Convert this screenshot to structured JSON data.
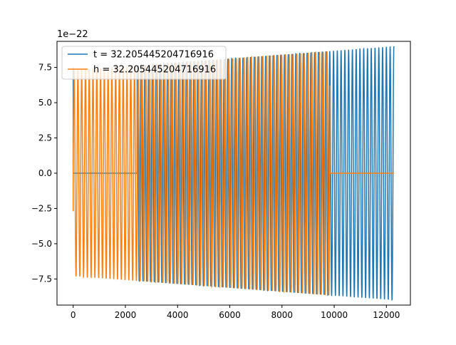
{
  "chart_data": {
    "type": "line",
    "title": "",
    "xlabel": "",
    "ylabel": "",
    "y_offset_label": "1e−22",
    "y_scale": 1e-22,
    "xlim": [
      -620,
      12920
    ],
    "ylim": [
      -9.35,
      9.35
    ],
    "x_ticks": [
      0,
      2000,
      4000,
      6000,
      8000,
      10000,
      12000
    ],
    "x_tick_labels": [
      "0",
      "2000",
      "4000",
      "6000",
      "8000",
      "10000",
      "12000"
    ],
    "y_ticks": [
      -7.5,
      -5.0,
      -2.5,
      0.0,
      2.5,
      5.0,
      7.5
    ],
    "y_tick_labels": [
      "−7.5",
      "−5.0",
      "−2.5",
      "0.0",
      "2.5",
      "5.0",
      "7.5"
    ],
    "grid": false,
    "legend_position": "top-left",
    "series": [
      {
        "name": "t = 32.205445204716916",
        "color": "#1f77b4",
        "x_start": 0,
        "x_end": 12288,
        "active_from": 2450,
        "active_to": 12288,
        "start_spike": 7.5,
        "cycles": 85,
        "amplitude_start": 7.3,
        "amplitude_end": 9.0
      },
      {
        "name": "h = 32.205445204716916",
        "color": "#ff7f0e",
        "x_start": 0,
        "x_end": 12288,
        "active_from": 0,
        "active_to": 9850,
        "start_value": -2.7,
        "cycles": 85,
        "amplitude_start": 7.3,
        "amplitude_end": 9.0
      }
    ]
  }
}
